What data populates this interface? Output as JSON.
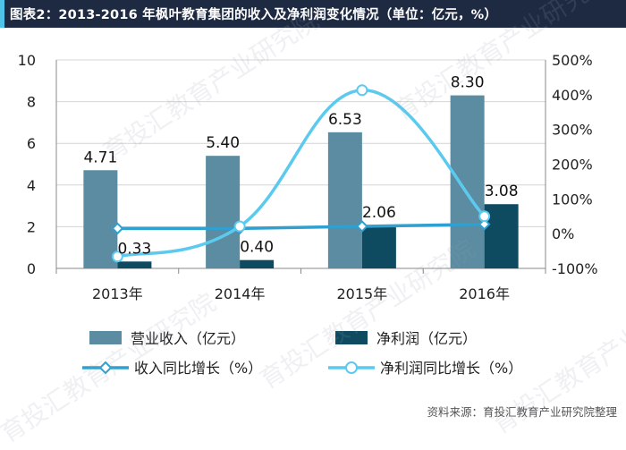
{
  "title": "图表2：2013-2016 年枫叶教育集团的收入及净利润变化情况（单位：亿元，%）",
  "source": "资料来源：育投汇教育产业研究院整理",
  "watermark": "育投汇教育产业研究院",
  "colors": {
    "revenue_bar": "#5b8ca1",
    "profit_bar": "#0e4a60",
    "revenue_growth_line": "#2fa0cf",
    "profit_growth_line": "#5ccaee",
    "title_bg": "#1d2a42",
    "title_accent": "#4fc3e8"
  },
  "chart_data": {
    "type": "bar",
    "categories": [
      "2013年",
      "2014年",
      "2015年",
      "2016年"
    ],
    "y_left": {
      "lim": [
        0,
        10
      ],
      "ticks": [
        0,
        2,
        4,
        6,
        8,
        10
      ],
      "tick_labels": [
        "0",
        "2",
        "4",
        "6",
        "8",
        "10"
      ]
    },
    "y_right": {
      "lim": [
        -100,
        500
      ],
      "ticks": [
        -100,
        0,
        100,
        200,
        300,
        400,
        500
      ],
      "tick_labels": [
        "-100%",
        "0%",
        "100%",
        "200%",
        "300%",
        "400%",
        "500%"
      ]
    },
    "bar_series": [
      {
        "name": "营业收入（亿元）",
        "values": [
          4.71,
          5.4,
          6.53,
          8.3
        ],
        "labels": [
          "4.71",
          "5.40",
          "6.53",
          "8.30"
        ],
        "axis": "left"
      },
      {
        "name": "净利润（亿元）",
        "values": [
          0.33,
          0.4,
          2.06,
          3.08
        ],
        "labels": [
          "0.33",
          "0.40",
          "2.06",
          "3.08"
        ],
        "axis": "left"
      }
    ],
    "line_series": [
      {
        "name": "收入同比增长（%）",
        "values": [
          15,
          15,
          21,
          27
        ],
        "axis": "right",
        "marker": "diamond",
        "smooth": false
      },
      {
        "name": "净利润同比增长（%）",
        "values": [
          -66,
          21,
          413,
          50
        ],
        "axis": "right",
        "marker": "circle",
        "smooth": true
      }
    ],
    "grid": true,
    "legend_position": "bottom"
  }
}
